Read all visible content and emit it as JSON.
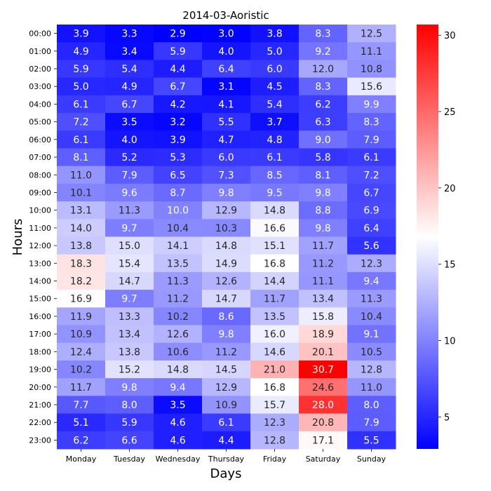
{
  "chart_data": {
    "type": "heatmap",
    "title": "2014-03-Aoristic",
    "xlabel": "Days",
    "ylabel": "Hours",
    "x_categories": [
      "Monday",
      "Tuesday",
      "Wednesday",
      "Thursday",
      "Friday",
      "Saturday",
      "Sunday"
    ],
    "y_categories": [
      "00:00",
      "01:00",
      "02:00",
      "03:00",
      "04:00",
      "05:00",
      "06:00",
      "07:00",
      "08:00",
      "09:00",
      "10:00",
      "11:00",
      "12:00",
      "13:00",
      "14:00",
      "15:00",
      "16:00",
      "17:00",
      "18:00",
      "19:00",
      "20:00",
      "21:00",
      "22:00",
      "23:00"
    ],
    "values": [
      [
        3.9,
        3.3,
        2.9,
        3.0,
        3.8,
        8.3,
        12.5
      ],
      [
        4.9,
        3.4,
        5.9,
        4.0,
        5.0,
        9.2,
        11.1
      ],
      [
        5.9,
        5.4,
        4.4,
        6.4,
        6.0,
        12.0,
        10.8
      ],
      [
        5.0,
        4.9,
        6.7,
        3.1,
        4.5,
        8.3,
        15.6
      ],
      [
        6.1,
        6.7,
        4.2,
        4.1,
        5.4,
        6.2,
        9.9
      ],
      [
        7.2,
        3.5,
        3.2,
        5.5,
        3.7,
        6.3,
        8.3
      ],
      [
        6.1,
        4.0,
        3.9,
        4.7,
        4.8,
        9.0,
        7.9
      ],
      [
        8.1,
        5.2,
        5.3,
        6.0,
        6.1,
        5.8,
        6.1
      ],
      [
        11.0,
        7.9,
        6.5,
        7.3,
        8.5,
        8.1,
        7.2
      ],
      [
        10.1,
        9.6,
        8.7,
        9.8,
        9.5,
        9.8,
        6.7
      ],
      [
        13.1,
        11.3,
        10.0,
        12.9,
        14.8,
        8.8,
        6.9
      ],
      [
        14.0,
        9.7,
        10.4,
        10.3,
        16.6,
        9.8,
        6.4
      ],
      [
        13.8,
        15.0,
        14.1,
        14.8,
        15.1,
        11.7,
        5.6
      ],
      [
        18.3,
        15.4,
        13.5,
        14.9,
        16.8,
        11.2,
        12.3
      ],
      [
        18.2,
        14.7,
        11.3,
        12.6,
        14.4,
        11.1,
        9.4
      ],
      [
        16.9,
        9.7,
        11.2,
        14.7,
        11.7,
        13.4,
        11.3
      ],
      [
        11.9,
        13.3,
        10.2,
        8.6,
        13.5,
        15.8,
        10.4
      ],
      [
        10.9,
        13.4,
        12.6,
        9.8,
        16.0,
        18.9,
        9.1
      ],
      [
        12.4,
        13.8,
        10.6,
        11.2,
        14.6,
        20.1,
        10.5
      ],
      [
        10.2,
        15.2,
        14.8,
        14.5,
        21.0,
        30.7,
        12.8
      ],
      [
        11.7,
        9.8,
        9.4,
        12.9,
        16.8,
        24.6,
        11.0
      ],
      [
        7.7,
        8.0,
        3.5,
        10.9,
        15.7,
        28.0,
        8.0
      ],
      [
        5.1,
        5.9,
        4.6,
        6.1,
        12.3,
        20.8,
        7.9
      ],
      [
        6.2,
        6.6,
        4.6,
        4.4,
        12.8,
        17.1,
        5.5
      ]
    ],
    "colormap": "bwr",
    "colormap_colors": [
      "#0000ff",
      "#ffffff",
      "#ff0000"
    ],
    "vmin": 2.9,
    "vmax": 30.7,
    "colorbar_ticks": [
      "5",
      "10",
      "15",
      "20",
      "25",
      "30"
    ]
  }
}
